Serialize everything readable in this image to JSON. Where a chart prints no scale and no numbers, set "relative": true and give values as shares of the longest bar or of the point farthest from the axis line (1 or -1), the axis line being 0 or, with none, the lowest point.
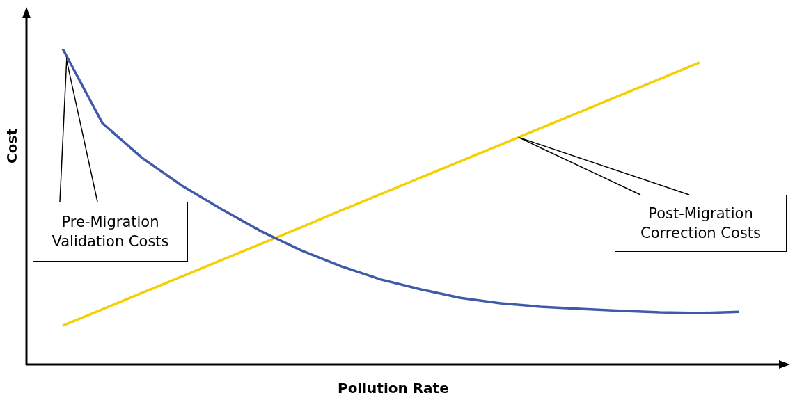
{
  "chart_data": {
    "type": "line",
    "relative": true,
    "xlabel": "Pollution Rate",
    "ylabel": "Cost",
    "marker": "none",
    "annotations": [
      "Pre-Migration Validation Costs",
      "Post-Migration Correction Costs"
    ],
    "categories": [
      null,
      null,
      null,
      null,
      null,
      null,
      null,
      null,
      null,
      null,
      null,
      null,
      null,
      null,
      null,
      null,
      null,
      null
    ],
    "series": [
      {
        "color": "#3f5aa8",
        "values": [
          1.0,
          0.764,
          0.654,
          0.566,
          0.491,
          0.421,
          0.361,
          0.311,
          0.269,
          0.238,
          0.211,
          0.194,
          0.183,
          0.176,
          0.17,
          0.165,
          0.163,
          0.167
        ]
      },
      {
        "color": "#f5d000",
        "values": [
          0.123,
          0.175,
          0.227,
          0.279,
          0.331,
          0.383,
          0.435,
          0.488,
          0.54,
          0.592,
          0.644,
          0.696,
          0.748,
          0.8,
          0.852,
          0.904,
          0.956,
          null
        ]
      }
    ]
  }
}
